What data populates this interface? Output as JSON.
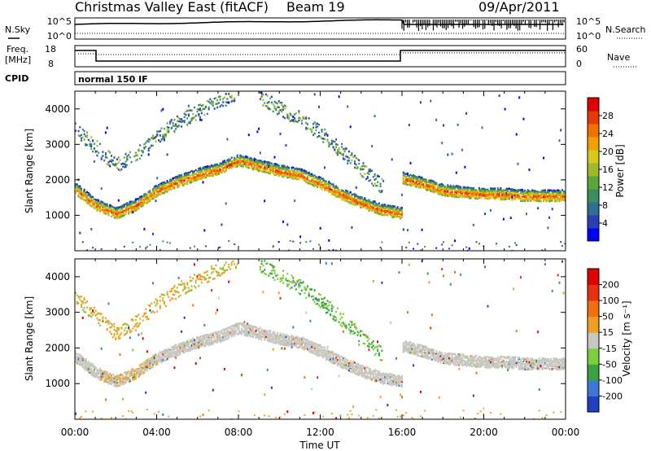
{
  "header": {
    "title": "Christmas Valley East (fitACF)",
    "beam": "Beam 19",
    "date": "09/Apr/2011"
  },
  "noise_panel": {
    "left_label": "N.Sky",
    "left_top": "10^5",
    "left_bottom": "10^0",
    "right_top": "10^5",
    "right_bottom": "10^0",
    "right_label": "N.Search"
  },
  "freq_panel": {
    "left_label_1": "Freq.",
    "left_label_2": "[MHz]",
    "left_top": "18",
    "left_bottom": "8",
    "right_top": "60",
    "right_bottom": "0",
    "right_label": "Nave"
  },
  "cpid_panel": {
    "label": "CPID",
    "text": "normal 150 IF"
  },
  "chart_data": [
    {
      "type": "heatmap",
      "name": "power",
      "ylabel": "Slant Range [km]",
      "ylim": [
        0,
        4500
      ],
      "yticks": [
        1000,
        2000,
        3000,
        4000
      ],
      "xlim": [
        0,
        24
      ],
      "xticks": [
        "00:00",
        "04:00",
        "08:00",
        "12:00",
        "16:00",
        "20:00",
        "00:00"
      ],
      "colorbar": {
        "label": "Power [dB]",
        "ticks": [
          "4",
          "8",
          "12",
          "16",
          "20",
          "24",
          "28"
        ],
        "colors": [
          "#0000ff",
          "#2b3fb3",
          "#2f6f8f",
          "#3a8f5a",
          "#5aa53c",
          "#a0b82a",
          "#d8c81c",
          "#f2a000",
          "#f07000",
          "#e83a00",
          "#e00000"
        ]
      },
      "bands": [
        {
          "series": "main",
          "x": [
            0,
            1,
            2,
            3,
            4,
            5,
            6,
            7,
            8,
            9,
            10,
            11,
            12,
            13,
            14,
            15,
            16
          ],
          "y": [
            1750,
            1300,
            1050,
            1300,
            1700,
            1950,
            2150,
            2300,
            2550,
            2400,
            2250,
            2150,
            1900,
            1600,
            1350,
            1150,
            1050
          ]
        },
        {
          "series": "post",
          "x": [
            16,
            17,
            18,
            19,
            20,
            21,
            22,
            23,
            24
          ],
          "y": [
            2050,
            1900,
            1700,
            1650,
            1600,
            1600,
            1550,
            1550,
            1550
          ]
        },
        {
          "series": "upper",
          "x": [
            0,
            1,
            2,
            3,
            4,
            5,
            6,
            7,
            8
          ],
          "y": [
            3400,
            2900,
            2400,
            2700,
            3200,
            3600,
            3900,
            4200,
            4450
          ]
        },
        {
          "series": "descending",
          "x": [
            9,
            10,
            11,
            12,
            13,
            14,
            15
          ],
          "y": [
            4300,
            4000,
            3700,
            3300,
            2800,
            2300,
            1800
          ]
        }
      ]
    },
    {
      "type": "heatmap",
      "name": "velocity",
      "ylabel": "Slant Range [km]",
      "xlabel": "Time UT",
      "ylim": [
        0,
        4500
      ],
      "yticks": [
        1000,
        2000,
        3000,
        4000
      ],
      "xlim": [
        0,
        24
      ],
      "xticks": [
        "00:00",
        "04:00",
        "08:00",
        "12:00",
        "16:00",
        "20:00",
        "00:00"
      ],
      "colorbar": {
        "label": "Velocity [m s⁻¹]",
        "ticks": [
          "200",
          "100",
          "50",
          "15",
          "-15",
          "-50",
          "-100",
          "-200"
        ],
        "colors": [
          "#2040c0",
          "#3c78d8",
          "#3aa040",
          "#7cd040",
          "#c8c8c0",
          "#f0a020",
          "#f07010",
          "#e83010",
          "#e00000"
        ]
      }
    }
  ]
}
